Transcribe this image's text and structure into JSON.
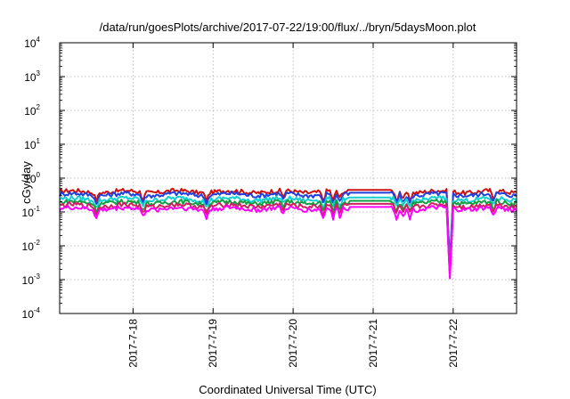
{
  "chart_data": {
    "type": "line",
    "title": "/data/run/goesPlots/archive/2017-07-22/19:00/flux/../bryn/5daysMoon.plot",
    "xlabel": "Coordinated Universal Time (UTC)",
    "ylabel": "cGy/day",
    "yscale": "log",
    "ylim": [
      0.0001,
      10000
    ],
    "xlim": [
      "2017-07-17 02:00",
      "2017-07-22 19:00"
    ],
    "x_ticks": [
      "2017-7-18",
      "2017-7-19",
      "2017-7-20",
      "2017-7-21",
      "2017-7-22"
    ],
    "y_ticks": [
      {
        "base": "10",
        "exp": "-4"
      },
      {
        "base": "10",
        "exp": "-3"
      },
      {
        "base": "10",
        "exp": "-2"
      },
      {
        "base": "10",
        "exp": "-1"
      },
      {
        "base": "10",
        "exp": "0"
      },
      {
        "base": "10",
        "exp": "1"
      },
      {
        "base": "10",
        "exp": "2"
      },
      {
        "base": "10",
        "exp": "3"
      },
      {
        "base": "10",
        "exp": "4"
      }
    ],
    "grid": true,
    "series": [
      {
        "color": "#d01010",
        "base": 0.4,
        "dip_depth": 0.55
      },
      {
        "color": "#2040e0",
        "base": 0.33,
        "dip_depth": 0.5
      },
      {
        "color": "#10d0d0",
        "base": 0.24,
        "dip_depth": 0.6
      },
      {
        "color": "#10a040",
        "base": 0.19,
        "dip_depth": 0.6
      },
      {
        "color": "#d02060",
        "base": 0.155,
        "dip_depth": 0.6
      },
      {
        "color": "#ff00ff",
        "base": 0.125,
        "dip_depth": 0.45
      }
    ],
    "gap": {
      "start": "2017-07-20 17:00",
      "end": "2017-07-21 05:00"
    },
    "dips": [
      {
        "time": "2017-07-17 13:00",
        "factor": 0.45
      },
      {
        "time": "2017-07-18 03:00",
        "factor": 0.5
      },
      {
        "time": "2017-07-18 22:00",
        "factor": 0.45
      },
      {
        "time": "2017-07-19 21:00",
        "factor": 0.55
      },
      {
        "time": "2017-07-20 09:00",
        "factor": 0.4
      },
      {
        "time": "2017-07-20 12:00",
        "factor": 0.35
      },
      {
        "time": "2017-07-20 14:00",
        "factor": 0.45
      },
      {
        "time": "2017-07-21 07:00",
        "factor": 0.4
      },
      {
        "time": "2017-07-21 09:00",
        "factor": 0.45
      },
      {
        "time": "2017-07-21 11:00",
        "factor": 0.5
      },
      {
        "time": "2017-07-21 23:00",
        "factor": 0.008
      },
      {
        "time": "2017-07-22 12:00",
        "factor": 0.45
      }
    ]
  }
}
